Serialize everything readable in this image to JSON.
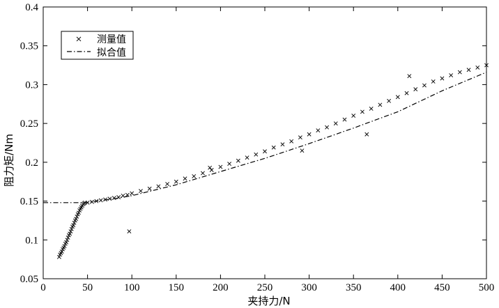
{
  "chart_data": {
    "type": "scatter",
    "xlabel": "夹持力/N",
    "ylabel": "阻力矩/Nm",
    "xlim": [
      0,
      500
    ],
    "ylim": [
      0.05,
      0.4
    ],
    "x_ticks": [
      0,
      50,
      100,
      150,
      200,
      250,
      300,
      350,
      400,
      450,
      500
    ],
    "y_ticks": [
      0.05,
      0.1,
      0.15,
      0.2,
      0.25,
      0.3,
      0.35,
      0.4
    ],
    "x_tick_labels": [
      "0",
      "50",
      "100",
      "150",
      "200",
      "250",
      "300",
      "350",
      "400",
      "450",
      "500"
    ],
    "y_tick_labels": [
      "0.05",
      "0.1",
      "0.15",
      "0.2",
      "0.25",
      "0.3",
      "0.35",
      "0.4"
    ],
    "grid": false,
    "legend": {
      "position": "top-left",
      "entries": [
        {
          "label": "测量值",
          "marker": "x"
        },
        {
          "label": "拟合值",
          "line": "dash-dot"
        }
      ]
    },
    "series": [
      {
        "name": "测量值",
        "kind": "scatter",
        "marker": "x",
        "points": [
          [
            18,
            0.078
          ],
          [
            19,
            0.081
          ],
          [
            20,
            0.083
          ],
          [
            21,
            0.085
          ],
          [
            22,
            0.088
          ],
          [
            23,
            0.09
          ],
          [
            24,
            0.092
          ],
          [
            25,
            0.095
          ],
          [
            26,
            0.097
          ],
          [
            27,
            0.1
          ],
          [
            28,
            0.103
          ],
          [
            29,
            0.106
          ],
          [
            30,
            0.108
          ],
          [
            31,
            0.111
          ],
          [
            32,
            0.114
          ],
          [
            33,
            0.117
          ],
          [
            34,
            0.119
          ],
          [
            35,
            0.122
          ],
          [
            36,
            0.125
          ],
          [
            37,
            0.127
          ],
          [
            38,
            0.13
          ],
          [
            39,
            0.133
          ],
          [
            40,
            0.135
          ],
          [
            41,
            0.138
          ],
          [
            42,
            0.14
          ],
          [
            43,
            0.142
          ],
          [
            44,
            0.144
          ],
          [
            45,
            0.146
          ],
          [
            46,
            0.147
          ],
          [
            47,
            0.148
          ],
          [
            50,
            0.148
          ],
          [
            55,
            0.149
          ],
          [
            60,
            0.15
          ],
          [
            65,
            0.151
          ],
          [
            70,
            0.152
          ],
          [
            75,
            0.153
          ],
          [
            80,
            0.154
          ],
          [
            85,
            0.155
          ],
          [
            90,
            0.157
          ],
          [
            95,
            0.158
          ],
          [
            100,
            0.16
          ],
          [
            110,
            0.163
          ],
          [
            120,
            0.166
          ],
          [
            130,
            0.169
          ],
          [
            140,
            0.172
          ],
          [
            150,
            0.175
          ],
          [
            160,
            0.179
          ],
          [
            170,
            0.182
          ],
          [
            180,
            0.186
          ],
          [
            190,
            0.19
          ],
          [
            200,
            0.194
          ],
          [
            210,
            0.198
          ],
          [
            220,
            0.202
          ],
          [
            230,
            0.206
          ],
          [
            240,
            0.21
          ],
          [
            250,
            0.214
          ],
          [
            260,
            0.219
          ],
          [
            270,
            0.223
          ],
          [
            280,
            0.227
          ],
          [
            290,
            0.232
          ],
          [
            300,
            0.236
          ],
          [
            310,
            0.241
          ],
          [
            320,
            0.245
          ],
          [
            330,
            0.25
          ],
          [
            340,
            0.255
          ],
          [
            350,
            0.26
          ],
          [
            360,
            0.265
          ],
          [
            370,
            0.269
          ],
          [
            380,
            0.274
          ],
          [
            390,
            0.279
          ],
          [
            400,
            0.284
          ],
          [
            410,
            0.289
          ],
          [
            420,
            0.294
          ],
          [
            430,
            0.299
          ],
          [
            440,
            0.304
          ],
          [
            450,
            0.308
          ],
          [
            460,
            0.312
          ],
          [
            470,
            0.316
          ],
          [
            480,
            0.319
          ],
          [
            490,
            0.322
          ],
          [
            500,
            0.325
          ],
          [
            97,
            0.111
          ],
          [
            188,
            0.193
          ],
          [
            292,
            0.215
          ],
          [
            365,
            0.236
          ],
          [
            413,
            0.311
          ]
        ]
      },
      {
        "name": "拟合值",
        "kind": "line",
        "line_style": "dash-dot",
        "points": [
          [
            0,
            0.148
          ],
          [
            48,
            0.148
          ],
          [
            60,
            0.15
          ],
          [
            80,
            0.153
          ],
          [
            100,
            0.157
          ],
          [
            150,
            0.171
          ],
          [
            200,
            0.188
          ],
          [
            250,
            0.205
          ],
          [
            300,
            0.224
          ],
          [
            350,
            0.244
          ],
          [
            400,
            0.265
          ],
          [
            450,
            0.292
          ],
          [
            500,
            0.316
          ]
        ]
      }
    ]
  }
}
